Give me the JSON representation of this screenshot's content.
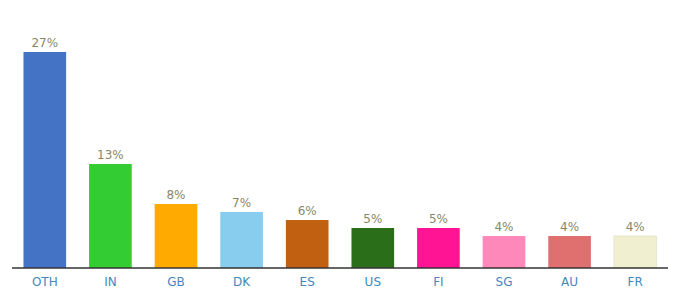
{
  "chart_data": {
    "type": "bar",
    "categories": [
      "OTH",
      "IN",
      "GB",
      "DK",
      "ES",
      "US",
      "FI",
      "SG",
      "AU",
      "FR"
    ],
    "values": [
      27,
      13,
      8,
      7,
      6,
      5,
      5,
      4,
      4,
      4
    ],
    "value_labels": [
      "27%",
      "13%",
      "8%",
      "7%",
      "6%",
      "5%",
      "5%",
      "4%",
      "4%",
      "4%"
    ],
    "data_labels": true,
    "colors": [
      "#4472c4",
      "#33cc33",
      "#ffaa00",
      "#88ccee",
      "#c06010",
      "#2a6e1a",
      "#ff1493",
      "#ff88bb",
      "#e07070",
      "#f0f0d0"
    ],
    "ylim": [
      0,
      31
    ],
    "grid": false,
    "tick_labels": "x"
  }
}
